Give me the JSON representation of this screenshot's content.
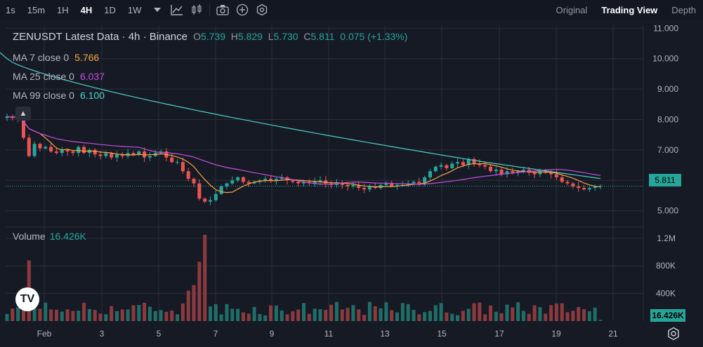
{
  "toolbar": {
    "timeframes": [
      "1s",
      "15m",
      "1H",
      "4H",
      "1D",
      "1W"
    ],
    "active_timeframe": "4H",
    "icons": [
      "chevron-down-icon",
      "line-chart-icon",
      "candle-chart-icon",
      "camera-icon",
      "plus-circle-icon",
      "settings-hex-icon"
    ],
    "views": [
      "Original",
      "Trading View",
      "Depth"
    ],
    "active_view": "Trading View"
  },
  "legend": {
    "symbol": "ZENUSDT Latest Data · 4h · Binance",
    "open_label": "O",
    "open": "5.739",
    "high_label": "H",
    "high": "5.829",
    "low_label": "L",
    "low": "5.730",
    "close_label": "C",
    "close": "5.811",
    "change": "0.075 (+1.33%)",
    "ma7_label": "MA 7 close 0",
    "ma7_value": "5.766",
    "ma25_label": "MA 25 close 0",
    "ma25_value": "6.037",
    "ma99_label": "MA 99 close 0",
    "ma99_value": "6.100"
  },
  "volume": {
    "label": "Volume",
    "value": "16.426K"
  },
  "price_tag": "5.811",
  "volume_tag": "16.426K",
  "logo_text": "TV",
  "colors": {
    "up": "#26a69a",
    "down": "#ef5350",
    "ma7": "#f7a440",
    "ma25": "#c64fe0",
    "ma99": "#4dd0c9",
    "grid": "#2a2e39",
    "bg": "#161a25"
  },
  "chart_data": {
    "type": "candlestick",
    "price_axis": {
      "ticks": [
        "11.000",
        "10.000",
        "9.000",
        "8.000",
        "7.000",
        "6.000",
        "5.000"
      ],
      "ylim": [
        4.6,
        11.1
      ]
    },
    "volume_axis": {
      "ticks": [
        "1.2M",
        "800K",
        "400K"
      ],
      "ylim": [
        0,
        1300000
      ]
    },
    "x_ticks": [
      "Feb",
      "3",
      "5",
      "7",
      "9",
      "11",
      "13",
      "15",
      "17",
      "19",
      "21"
    ],
    "close_approx": [
      8.1,
      8.05,
      8.15,
      7.4,
      6.8,
      7.2,
      7.05,
      7.1,
      6.95,
      6.9,
      7.0,
      6.95,
      6.9,
      7.1,
      6.9,
      7.0,
      6.85,
      6.8,
      6.9,
      6.75,
      6.85,
      6.8,
      6.9,
      6.85,
      6.95,
      6.75,
      6.8,
      6.9,
      6.95,
      6.75,
      6.6,
      6.6,
      6.3,
      6.05,
      5.9,
      5.4,
      5.3,
      5.35,
      5.55,
      5.8,
      5.9,
      6.0,
      6.1,
      5.95,
      5.9,
      5.95,
      6.0,
      6.05,
      6.0,
      6.05,
      6.1,
      6.0,
      5.95,
      5.9,
      5.95,
      5.9,
      5.95,
      6.0,
      5.9,
      5.85,
      5.9,
      5.85,
      5.8,
      5.85,
      5.75,
      5.7,
      5.8,
      5.75,
      5.85,
      5.9,
      5.8,
      5.85,
      5.85,
      5.9,
      5.95,
      5.9,
      6.1,
      6.3,
      6.45,
      6.5,
      6.4,
      6.55,
      6.6,
      6.5,
      6.7,
      6.55,
      6.5,
      6.45,
      6.3,
      6.35,
      6.2,
      6.3,
      6.25,
      6.3,
      6.35,
      6.25,
      6.2,
      6.3,
      6.25,
      6.2,
      6.1,
      5.95,
      5.9,
      5.8,
      5.75,
      5.7,
      5.75,
      5.8,
      5.811
    ]
  }
}
